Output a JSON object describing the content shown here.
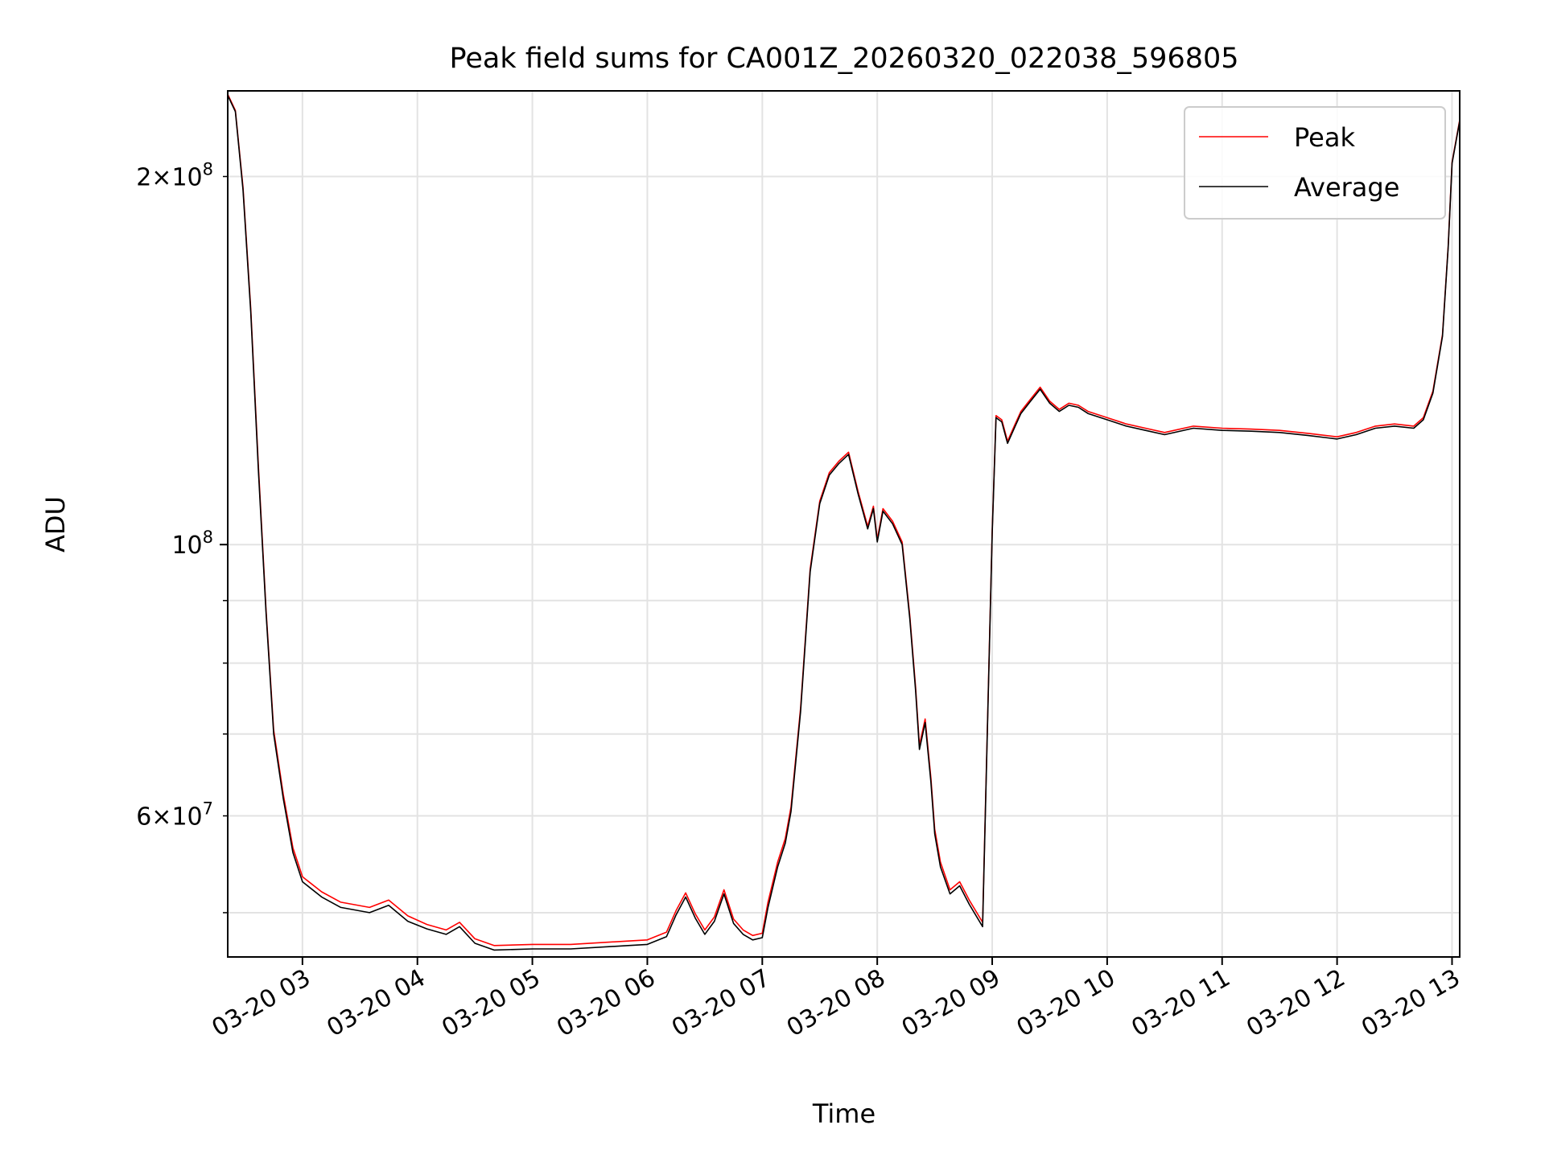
{
  "chart_data": {
    "type": "line",
    "title": "Peak field sums for CA001Z_20260320_022038_596805",
    "xlabel": "Time",
    "ylabel": "ADU",
    "y_scale": "log",
    "ylim": [
      46000000,
      235000000
    ],
    "xlim": [
      "2026-03-20 02:21",
      "2026-03-20 13:04"
    ],
    "x_ticks": [
      "2026-03-20 03:00",
      "2026-03-20 04:00",
      "2026-03-20 05:00",
      "2026-03-20 06:00",
      "2026-03-20 07:00",
      "2026-03-20 08:00",
      "2026-03-20 09:00",
      "2026-03-20 10:00",
      "2026-03-20 11:00",
      "2026-03-20 12:00",
      "2026-03-20 13:00"
    ],
    "x_tick_labels": [
      "03-20 03",
      "03-20 04",
      "03-20 05",
      "03-20 06",
      "03-20 07",
      "03-20 08",
      "03-20 09",
      "03-20 10",
      "03-20 11",
      "03-20 12",
      "03-20 13"
    ],
    "y_major_ticks": [
      100000000
    ],
    "y_major_labels": [
      "10^8"
    ],
    "y_minor_ticks": [
      50000000,
      60000000,
      70000000,
      80000000,
      90000000,
      200000000
    ],
    "y_minor_labels": [
      "",
      "6×10^7",
      "",
      "",
      "",
      "2×10^8"
    ],
    "grid": true,
    "legend": {
      "position": "top-right",
      "entries": [
        "Peak",
        "Average"
      ]
    },
    "colors": {
      "Peak": "#ff0000",
      "Average": "#000000"
    },
    "series": [
      {
        "name": "Average",
        "x": [
          "2026-03-20 02:21",
          "2026-03-20 02:25",
          "2026-03-20 02:29",
          "2026-03-20 02:33",
          "2026-03-20 02:37",
          "2026-03-20 02:41",
          "2026-03-20 02:45",
          "2026-03-20 02:50",
          "2026-03-20 02:55",
          "2026-03-20 03:00",
          "2026-03-20 03:10",
          "2026-03-20 03:20",
          "2026-03-20 03:35",
          "2026-03-20 03:45",
          "2026-03-20 03:55",
          "2026-03-20 04:05",
          "2026-03-20 04:15",
          "2026-03-20 04:22",
          "2026-03-20 04:30",
          "2026-03-20 04:40",
          "2026-03-20 05:00",
          "2026-03-20 05:20",
          "2026-03-20 05:40",
          "2026-03-20 05:50",
          "2026-03-20 06:00",
          "2026-03-20 06:10",
          "2026-03-20 06:15",
          "2026-03-20 06:20",
          "2026-03-20 06:25",
          "2026-03-20 06:30",
          "2026-03-20 06:35",
          "2026-03-20 06:40",
          "2026-03-20 06:45",
          "2026-03-20 06:50",
          "2026-03-20 06:55",
          "2026-03-20 07:00",
          "2026-03-20 07:03",
          "2026-03-20 07:08",
          "2026-03-20 07:12",
          "2026-03-20 07:15",
          "2026-03-20 07:20",
          "2026-03-20 07:25",
          "2026-03-20 07:30",
          "2026-03-20 07:35",
          "2026-03-20 07:40",
          "2026-03-20 07:45",
          "2026-03-20 07:50",
          "2026-03-20 07:55",
          "2026-03-20 07:58",
          "2026-03-20 08:00",
          "2026-03-20 08:03",
          "2026-03-20 08:08",
          "2026-03-20 08:13",
          "2026-03-20 08:17",
          "2026-03-20 08:20",
          "2026-03-20 08:22",
          "2026-03-20 08:25",
          "2026-03-20 08:28",
          "2026-03-20 08:30",
          "2026-03-20 08:33",
          "2026-03-20 08:38",
          "2026-03-20 08:43",
          "2026-03-20 08:48",
          "2026-03-20 08:55",
          "2026-03-20 09:00",
          "2026-03-20 09:02",
          "2026-03-20 09:05",
          "2026-03-20 09:08",
          "2026-03-20 09:12",
          "2026-03-20 09:15",
          "2026-03-20 09:20",
          "2026-03-20 09:25",
          "2026-03-20 09:30",
          "2026-03-20 09:35",
          "2026-03-20 09:40",
          "2026-03-20 09:45",
          "2026-03-20 09:50",
          "2026-03-20 10:00",
          "2026-03-20 10:10",
          "2026-03-20 10:20",
          "2026-03-20 10:30",
          "2026-03-20 10:45",
          "2026-03-20 11:00",
          "2026-03-20 11:15",
          "2026-03-20 11:30",
          "2026-03-20 11:45",
          "2026-03-20 12:00",
          "2026-03-20 12:10",
          "2026-03-20 12:20",
          "2026-03-20 12:30",
          "2026-03-20 12:40",
          "2026-03-20 12:45",
          "2026-03-20 12:50",
          "2026-03-20 12:55",
          "2026-03-20 12:58",
          "2026-03-20 13:00",
          "2026-03-20 13:04"
        ],
        "values": [
          233000000,
          226000000,
          195000000,
          155000000,
          115000000,
          88000000,
          70000000,
          62000000,
          56000000,
          53000000,
          51500000,
          50500000,
          50000000,
          50700000,
          49200000,
          48500000,
          48000000,
          48700000,
          47200000,
          46600000,
          46700000,
          46700000,
          46900000,
          47000000,
          47100000,
          47800000,
          49800000,
          51500000,
          49500000,
          48000000,
          49200000,
          51800000,
          49000000,
          48000000,
          47500000,
          47700000,
          50500000,
          54500000,
          57000000,
          60500000,
          73000000,
          95000000,
          108000000,
          114000000,
          116500000,
          118500000,
          110000000,
          103000000,
          107000000,
          100500000,
          106500000,
          104000000,
          100000000,
          87000000,
          76000000,
          68000000,
          71500000,
          64000000,
          58000000,
          54500000,
          51800000,
          52600000,
          50800000,
          48700000,
          102000000,
          127000000,
          126000000,
          121000000,
          125000000,
          128000000,
          131000000,
          134000000,
          130500000,
          128500000,
          130000000,
          129500000,
          128000000,
          126500000,
          125000000,
          124000000,
          123000000,
          124500000,
          124000000,
          123800000,
          123500000,
          122800000,
          122000000,
          123000000,
          124500000,
          125000000,
          124500000,
          126500000,
          133000000,
          148000000,
          175000000,
          205000000,
          222000000
        ]
      },
      {
        "name": "Peak",
        "x": [
          "2026-03-20 02:21",
          "2026-03-20 02:25",
          "2026-03-20 02:29",
          "2026-03-20 02:33",
          "2026-03-20 02:37",
          "2026-03-20 02:41",
          "2026-03-20 02:45",
          "2026-03-20 02:50",
          "2026-03-20 02:55",
          "2026-03-20 03:00",
          "2026-03-20 03:10",
          "2026-03-20 03:20",
          "2026-03-20 03:35",
          "2026-03-20 03:45",
          "2026-03-20 03:55",
          "2026-03-20 04:05",
          "2026-03-20 04:15",
          "2026-03-20 04:22",
          "2026-03-20 04:30",
          "2026-03-20 04:40",
          "2026-03-20 05:00",
          "2026-03-20 05:20",
          "2026-03-20 05:40",
          "2026-03-20 05:50",
          "2026-03-20 06:00",
          "2026-03-20 06:10",
          "2026-03-20 06:15",
          "2026-03-20 06:20",
          "2026-03-20 06:25",
          "2026-03-20 06:30",
          "2026-03-20 06:35",
          "2026-03-20 06:40",
          "2026-03-20 06:45",
          "2026-03-20 06:50",
          "2026-03-20 06:55",
          "2026-03-20 07:00",
          "2026-03-20 07:03",
          "2026-03-20 07:08",
          "2026-03-20 07:12",
          "2026-03-20 07:15",
          "2026-03-20 07:20",
          "2026-03-20 07:25",
          "2026-03-20 07:30",
          "2026-03-20 07:35",
          "2026-03-20 07:40",
          "2026-03-20 07:45",
          "2026-03-20 07:50",
          "2026-03-20 07:55",
          "2026-03-20 07:58",
          "2026-03-20 08:00",
          "2026-03-20 08:03",
          "2026-03-20 08:08",
          "2026-03-20 08:13",
          "2026-03-20 08:17",
          "2026-03-20 08:20",
          "2026-03-20 08:22",
          "2026-03-20 08:25",
          "2026-03-20 08:28",
          "2026-03-20 08:30",
          "2026-03-20 08:33",
          "2026-03-20 08:38",
          "2026-03-20 08:43",
          "2026-03-20 08:48",
          "2026-03-20 08:55",
          "2026-03-20 09:00",
          "2026-03-20 09:02",
          "2026-03-20 09:05",
          "2026-03-20 09:08",
          "2026-03-20 09:12",
          "2026-03-20 09:15",
          "2026-03-20 09:20",
          "2026-03-20 09:25",
          "2026-03-20 09:30",
          "2026-03-20 09:35",
          "2026-03-20 09:40",
          "2026-03-20 09:45",
          "2026-03-20 09:50",
          "2026-03-20 10:00",
          "2026-03-20 10:10",
          "2026-03-20 10:20",
          "2026-03-20 10:30",
          "2026-03-20 10:45",
          "2026-03-20 11:00",
          "2026-03-20 11:15",
          "2026-03-20 11:30",
          "2026-03-20 11:45",
          "2026-03-20 12:00",
          "2026-03-20 12:10",
          "2026-03-20 12:20",
          "2026-03-20 12:30",
          "2026-03-20 12:40",
          "2026-03-20 12:45",
          "2026-03-20 12:50",
          "2026-03-20 12:55",
          "2026-03-20 12:58",
          "2026-03-20 13:00",
          "2026-03-20 13:04"
        ],
        "values": [
          233500000,
          226500000,
          196000000,
          156000000,
          116000000,
          88500000,
          70500000,
          62500000,
          56500000,
          53500000,
          52000000,
          51000000,
          50500000,
          51200000,
          49700000,
          48900000,
          48400000,
          49100000,
          47600000,
          47000000,
          47100000,
          47100000,
          47300000,
          47400000,
          47500000,
          48200000,
          50200000,
          51900000,
          49900000,
          48400000,
          49600000,
          52200000,
          49400000,
          48400000,
          47900000,
          48100000,
          51000000,
          55000000,
          57500000,
          61000000,
          73500000,
          95500000,
          108500000,
          114500000,
          117000000,
          119000000,
          110500000,
          103500000,
          107500000,
          101000000,
          107000000,
          104500000,
          100500000,
          87500000,
          76500000,
          68500000,
          72000000,
          64500000,
          58500000,
          55000000,
          52200000,
          53000000,
          51200000,
          49100000,
          102500000,
          127500000,
          126500000,
          121500000,
          125500000,
          128500000,
          131500000,
          134500000,
          131000000,
          129000000,
          130500000,
          130000000,
          128500000,
          127000000,
          125500000,
          124500000,
          123500000,
          125000000,
          124500000,
          124300000,
          124000000,
          123300000,
          122500000,
          123500000,
          125000000,
          125500000,
          125000000,
          127000000,
          133500000,
          148500000,
          175500000,
          205500000,
          222500000
        ]
      }
    ]
  }
}
